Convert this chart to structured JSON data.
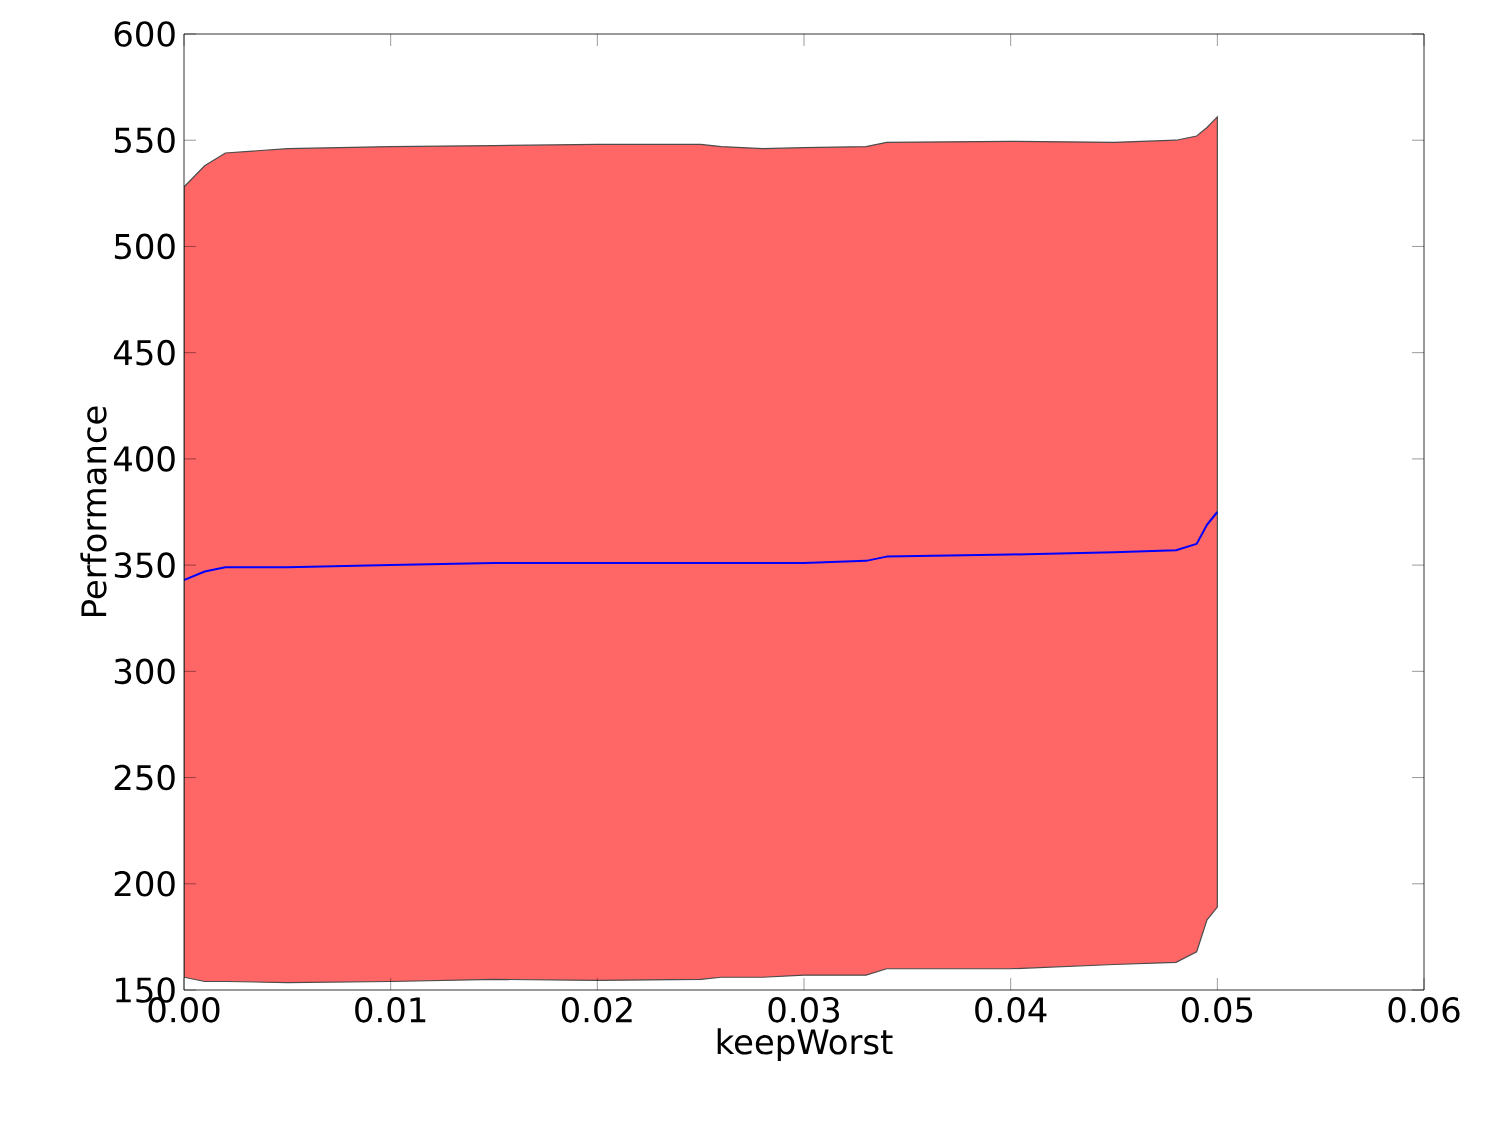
{
  "chart_data": {
    "type": "line",
    "xlabel": "keepWorst",
    "ylabel": "Performance",
    "x": [
      0,
      0.001,
      0.002,
      0.005,
      0.01,
      0.015,
      0.02,
      0.025,
      0.026,
      0.028,
      0.03,
      0.033,
      0.034,
      0.04,
      0.045,
      0.048,
      0.049,
      0.0495,
      0.05
    ],
    "series": [
      {
        "color": "#0000ff",
        "values": [
          343,
          347,
          349,
          349,
          350,
          351,
          351,
          351,
          351,
          351,
          351,
          352,
          354,
          355,
          356,
          357,
          360,
          369,
          375
        ],
        "lower": [
          156,
          154,
          154,
          153.5,
          154,
          155,
          154.5,
          155,
          156,
          156,
          157,
          157,
          160,
          160,
          162,
          163,
          168,
          183,
          189
        ],
        "upper": [
          528,
          538,
          544,
          546,
          547,
          547.5,
          548,
          548,
          547,
          546,
          546.5,
          547,
          549,
          549.5,
          549,
          550,
          552,
          556,
          561
        ]
      }
    ],
    "xlim": [
      0,
      0.06
    ],
    "ylim": [
      150,
      600
    ],
    "xticks": [
      {
        "value": 0,
        "label": "0.00"
      },
      {
        "value": 0.01,
        "label": "0.01"
      },
      {
        "value": 0.02,
        "label": "0.02"
      },
      {
        "value": 0.03,
        "label": "0.03"
      },
      {
        "value": 0.04,
        "label": "0.04"
      },
      {
        "value": 0.05,
        "label": "0.05"
      },
      {
        "value": 0.06,
        "label": "0.06"
      }
    ],
    "yticks": [
      150,
      200,
      250,
      300,
      350,
      400,
      450,
      500,
      550,
      600
    ],
    "marker": "none",
    "line_style": "solid"
  }
}
